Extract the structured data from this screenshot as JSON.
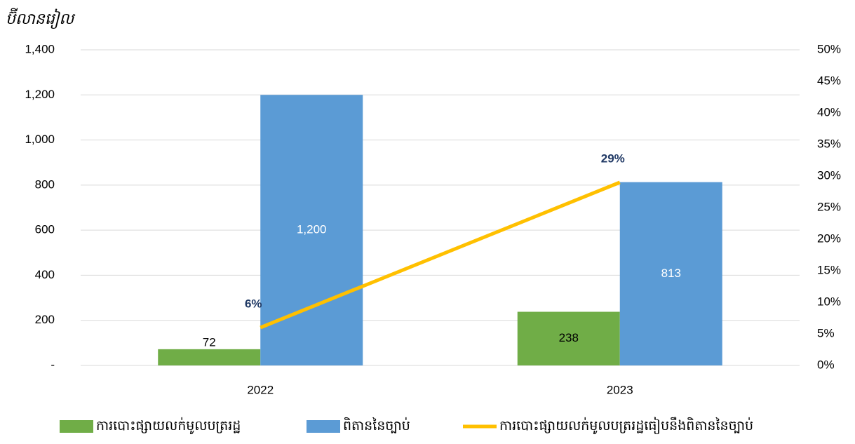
{
  "chart_data": {
    "type": "bar",
    "y_axis_label": "ប៊ីលានរៀល",
    "categories": [
      "2022",
      "2023"
    ],
    "series": [
      {
        "name": "ការបោះផ្សាយលក់មូលបត្ររដ្ឋ",
        "color": "#70ad47",
        "values": [
          72,
          238
        ]
      },
      {
        "name": "ពិតាននៃច្បាប់",
        "color": "#5b9bd5",
        "values": [
          1200,
          813
        ],
        "value_labels": [
          "1,200",
          "813"
        ]
      },
      {
        "name": "ការបោះផ្សាយលក់មូលបត្ររដ្ឋធៀបនឹងពិតាននៃច្បាប់",
        "type": "line",
        "axis": "y2",
        "color": "#ffc000",
        "values": [
          6,
          29
        ],
        "value_labels": [
          "6%",
          "29%"
        ]
      }
    ],
    "ylim": [
      0,
      1400
    ],
    "yticks": [
      {
        "value": 0,
        "label": "-"
      },
      200,
      400,
      600,
      800,
      {
        "value": 1000,
        "label": "1,000"
      },
      {
        "value": 1200,
        "label": "1,200"
      },
      {
        "value": 1400,
        "label": "1,400"
      }
    ],
    "y2lim": [
      0,
      50
    ],
    "y2ticks": [
      {
        "value": 0,
        "label": "0%"
      },
      {
        "value": 5,
        "label": "5%"
      },
      {
        "value": 10,
        "label": "10%"
      },
      {
        "value": 15,
        "label": "15%"
      },
      {
        "value": 20,
        "label": "20%"
      },
      {
        "value": 25,
        "label": "25%"
      },
      {
        "value": 30,
        "label": "30%"
      },
      {
        "value": 35,
        "label": "35%"
      },
      {
        "value": 40,
        "label": "40%"
      },
      {
        "value": 45,
        "label": "45%"
      },
      {
        "value": 50,
        "label": "50%"
      }
    ],
    "grid": true,
    "legend": "bottom"
  }
}
